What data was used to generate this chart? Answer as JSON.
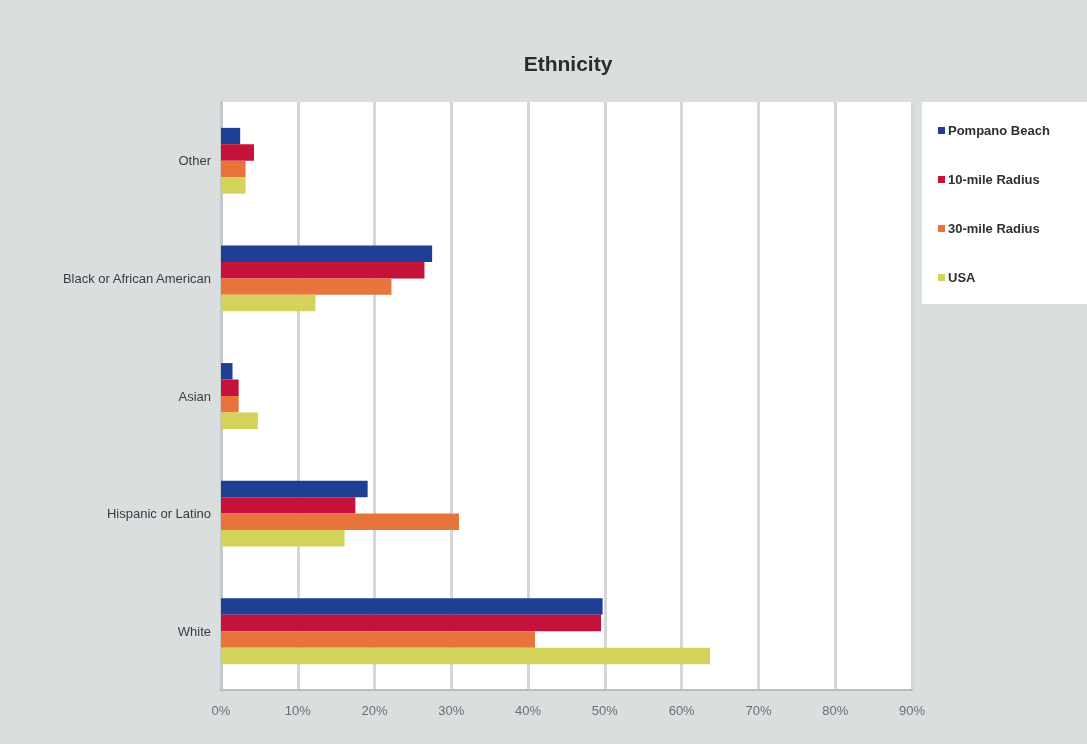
{
  "chart_data": {
    "type": "bar",
    "orientation": "horizontal",
    "title": "Ethnicity",
    "categories": [
      "Other",
      "Black or African American",
      "Asian",
      "Hispanic or Latino",
      "White"
    ],
    "series": [
      {
        "name": "Pompano Beach",
        "color": "#1f3f94",
        "values": [
          2.5,
          27.5,
          1.5,
          19.1,
          49.7
        ]
      },
      {
        "name": "10-mile Radius",
        "color": "#c4123a",
        "values": [
          4.3,
          26.5,
          2.3,
          17.5,
          49.5
        ]
      },
      {
        "name": "30-mile Radius",
        "color": "#e8743b",
        "values": [
          3.2,
          22.2,
          2.3,
          31.0,
          40.9
        ]
      },
      {
        "name": "USA",
        "color": "#d3d35c",
        "values": [
          3.2,
          12.3,
          4.8,
          16.1,
          63.7
        ]
      }
    ],
    "xlim": [
      0,
      90
    ],
    "xticks": [
      {
        "value": 0,
        "label": "0%"
      },
      {
        "value": 10,
        "label": "10%"
      },
      {
        "value": 20,
        "label": "20%"
      },
      {
        "value": 30,
        "label": "30%"
      },
      {
        "value": 40,
        "label": "40%"
      },
      {
        "value": 50,
        "label": "50%"
      },
      {
        "value": 60,
        "label": "60%"
      },
      {
        "value": 70,
        "label": "70%"
      },
      {
        "value": 80,
        "label": "80%"
      },
      {
        "value": 90,
        "label": "90%"
      }
    ],
    "grid": "x",
    "legend": "top right"
  }
}
